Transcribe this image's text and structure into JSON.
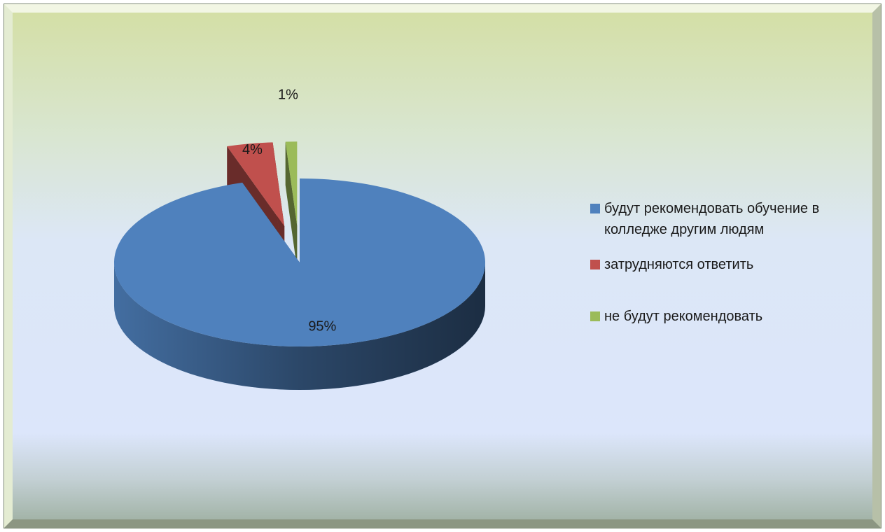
{
  "chart_data": {
    "type": "pie",
    "categories": [
      "будут рекомендовать обучение в колледже другим людям",
      "затрудняются ответить",
      "не будут рекомендовать"
    ],
    "values": [
      95,
      4,
      1
    ],
    "value_labels": [
      "95%",
      "4%",
      "1%"
    ],
    "colors": [
      "#4f81bd",
      "#c0504d",
      "#9bbb59"
    ],
    "legend": "right"
  }
}
